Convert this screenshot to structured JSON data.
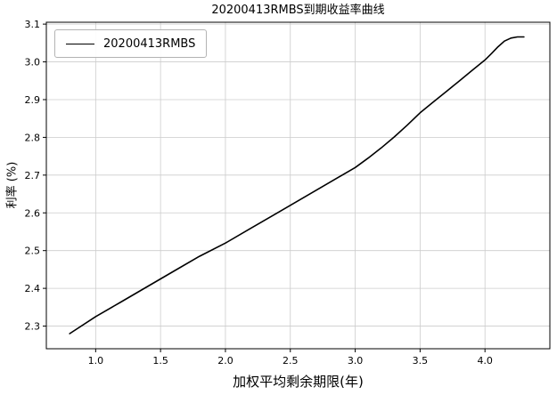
{
  "chart_data": {
    "type": "line",
    "title": "20200413RMBS到期收益率曲线",
    "xlabel": "加权平均剩余期限(年)",
    "ylabel": "利率 (%)",
    "grid": true,
    "legend_position": "upper left",
    "line_color": "#000000",
    "grid_color": "#cccccc",
    "xlim": [
      0.62,
      4.5
    ],
    "ylim": [
      2.24,
      3.105
    ],
    "xticks": [
      1.0,
      1.5,
      2.0,
      2.5,
      3.0,
      3.5,
      4.0
    ],
    "yticks": [
      2.3,
      2.4,
      2.5,
      2.6,
      2.7,
      2.8,
      2.9,
      3.0,
      3.1
    ],
    "series": [
      {
        "name": "20200413RMBS",
        "x": [
          0.8,
          1.0,
          1.2,
          1.4,
          1.6,
          1.8,
          2.0,
          2.2,
          2.4,
          2.6,
          2.8,
          3.0,
          3.1,
          3.2,
          3.3,
          3.4,
          3.5,
          3.6,
          3.7,
          3.8,
          3.9,
          4.0,
          4.05,
          4.1,
          4.15,
          4.2,
          4.25,
          4.3
        ],
        "y": [
          2.28,
          2.325,
          2.365,
          2.405,
          2.445,
          2.485,
          2.52,
          2.56,
          2.6,
          2.64,
          2.68,
          2.72,
          2.745,
          2.772,
          2.801,
          2.832,
          2.865,
          2.893,
          2.921,
          2.949,
          2.977,
          3.005,
          3.022,
          3.04,
          3.055,
          3.063,
          3.066,
          3.066
        ]
      }
    ]
  }
}
